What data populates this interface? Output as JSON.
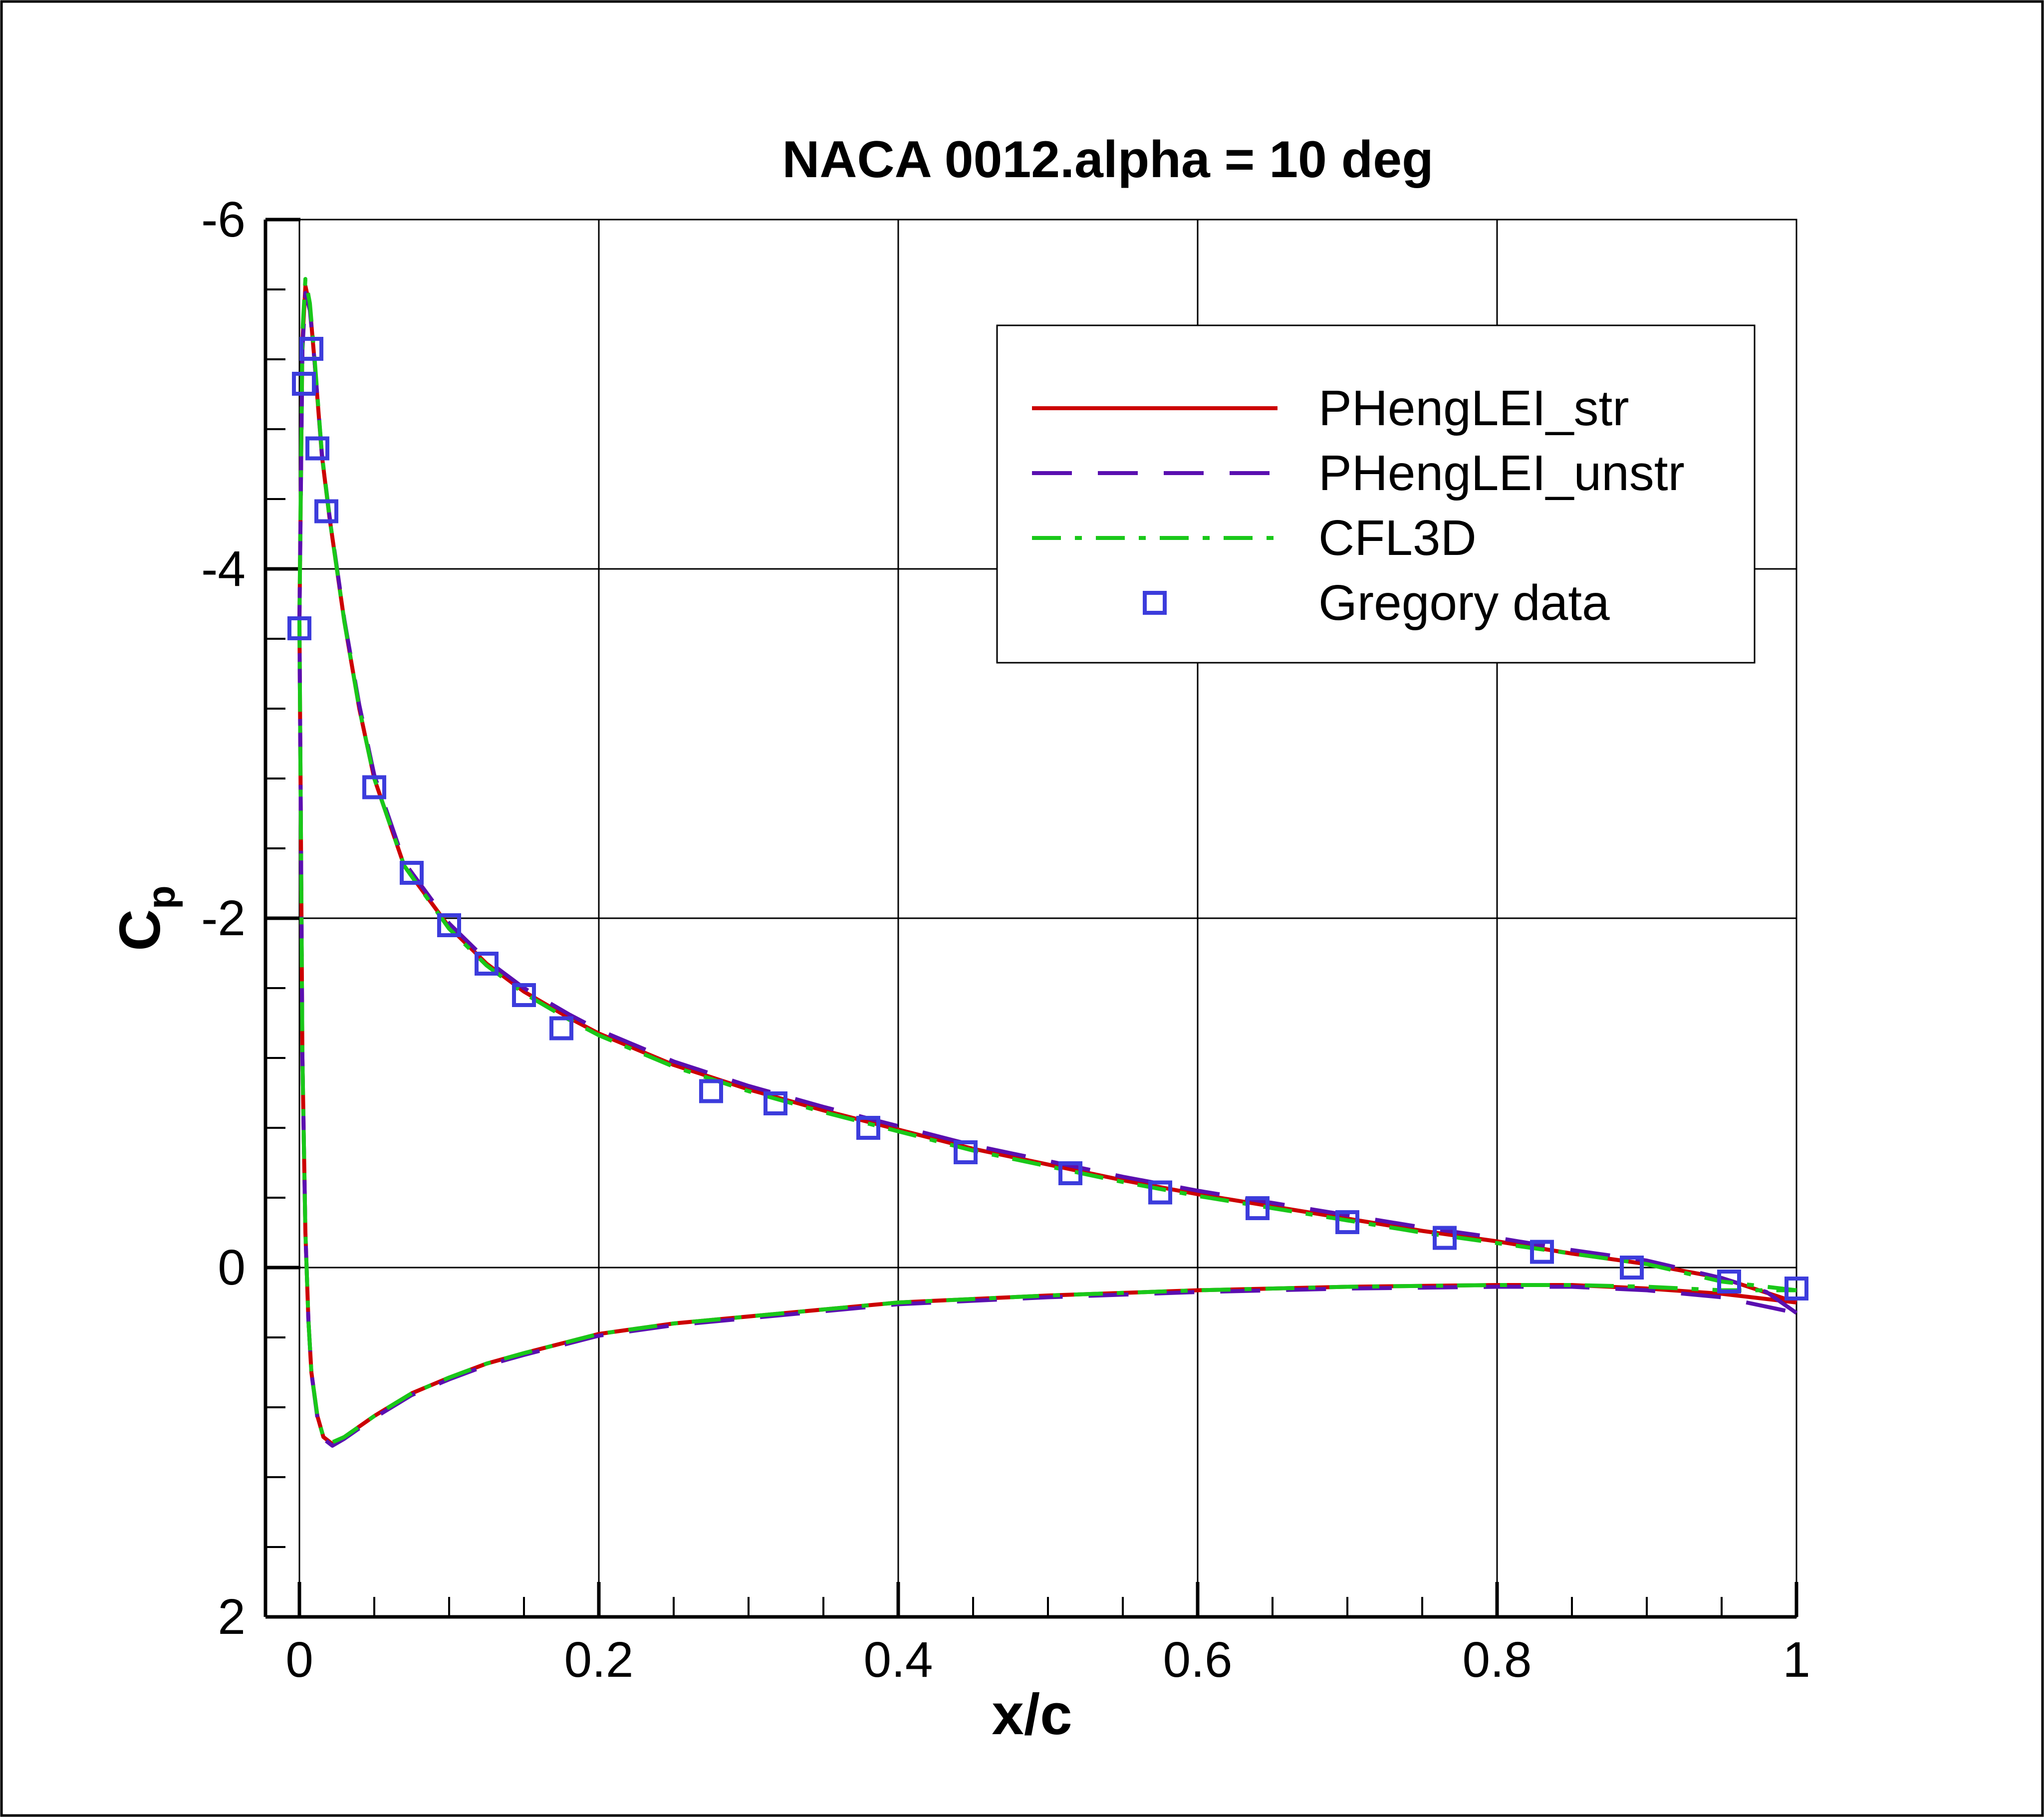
{
  "chart_data": {
    "type": "line",
    "title": "NACA 0012.alpha = 10 deg",
    "xlabel": "x/c",
    "ylabel_main": "C",
    "ylabel_sub": "p",
    "xlim": [
      0,
      1
    ],
    "ylim": [
      2,
      -6
    ],
    "y_inverted": true,
    "grid": true,
    "legend_position": "top-right",
    "x_ticks": [
      0,
      0.2,
      0.4,
      0.6,
      0.8,
      1
    ],
    "x_tick_labels": [
      "0",
      "0.2",
      "0.4",
      "0.6",
      "0.8",
      "1"
    ],
    "y_ticks": [
      -6,
      -4,
      -2,
      0,
      2
    ],
    "y_tick_labels": [
      "-6",
      "-4",
      "-2",
      "0",
      "2"
    ],
    "series": [
      {
        "name": "PHengLEI_str",
        "style": "solid",
        "color": "#cc0000",
        "upper": [
          [
            0,
            -3.7
          ],
          [
            0.002,
            -5.3
          ],
          [
            0.004,
            -5.62
          ],
          [
            0.007,
            -5.5
          ],
          [
            0.01,
            -5.2
          ],
          [
            0.015,
            -4.65
          ],
          [
            0.02,
            -4.3
          ],
          [
            0.03,
            -3.7
          ],
          [
            0.04,
            -3.2
          ],
          [
            0.05,
            -2.8
          ],
          [
            0.07,
            -2.3
          ],
          [
            0.1,
            -1.95
          ],
          [
            0.125,
            -1.74
          ],
          [
            0.15,
            -1.58
          ],
          [
            0.18,
            -1.43
          ],
          [
            0.2,
            -1.34
          ],
          [
            0.25,
            -1.16
          ],
          [
            0.3,
            -1.02
          ],
          [
            0.35,
            -0.9
          ],
          [
            0.4,
            -0.79
          ],
          [
            0.45,
            -0.68
          ],
          [
            0.5,
            -0.59
          ],
          [
            0.55,
            -0.5
          ],
          [
            0.6,
            -0.42
          ],
          [
            0.65,
            -0.35
          ],
          [
            0.7,
            -0.28
          ],
          [
            0.75,
            -0.21
          ],
          [
            0.8,
            -0.15
          ],
          [
            0.85,
            -0.08
          ],
          [
            0.9,
            -0.02
          ],
          [
            0.95,
            0.06
          ],
          [
            1,
            0.2
          ]
        ],
        "lower": [
          [
            0,
            -3.7
          ],
          [
            0.001,
            -2.5
          ],
          [
            0.002,
            -1.2
          ],
          [
            0.004,
            -0.2
          ],
          [
            0.006,
            0.3
          ],
          [
            0.008,
            0.6
          ],
          [
            0.012,
            0.85
          ],
          [
            0.016,
            0.97
          ],
          [
            0.022,
            1.01
          ],
          [
            0.03,
            0.97
          ],
          [
            0.05,
            0.85
          ],
          [
            0.075,
            0.72
          ],
          [
            0.1,
            0.63
          ],
          [
            0.125,
            0.55
          ],
          [
            0.15,
            0.49
          ],
          [
            0.2,
            0.38
          ],
          [
            0.25,
            0.32
          ],
          [
            0.3,
            0.28
          ],
          [
            0.4,
            0.2
          ],
          [
            0.5,
            0.16
          ],
          [
            0.6,
            0.13
          ],
          [
            0.7,
            0.11
          ],
          [
            0.8,
            0.1
          ],
          [
            0.85,
            0.1
          ],
          [
            0.9,
            0.12
          ],
          [
            0.95,
            0.15
          ],
          [
            1,
            0.2
          ]
        ]
      },
      {
        "name": "PHengLEI_unstr",
        "style": "dashed",
        "color": "#5a0fb0",
        "upper": [
          [
            0,
            -3.7
          ],
          [
            0.002,
            -5.25
          ],
          [
            0.004,
            -5.58
          ],
          [
            0.007,
            -5.48
          ],
          [
            0.01,
            -5.2
          ],
          [
            0.015,
            -4.66
          ],
          [
            0.02,
            -4.31
          ],
          [
            0.03,
            -3.71
          ],
          [
            0.04,
            -3.22
          ],
          [
            0.05,
            -2.82
          ],
          [
            0.07,
            -2.32
          ],
          [
            0.1,
            -1.97
          ],
          [
            0.125,
            -1.76
          ],
          [
            0.15,
            -1.6
          ],
          [
            0.18,
            -1.45
          ],
          [
            0.2,
            -1.36
          ],
          [
            0.25,
            -1.18
          ],
          [
            0.3,
            -1.04
          ],
          [
            0.35,
            -0.92
          ],
          [
            0.4,
            -0.81
          ],
          [
            0.45,
            -0.7
          ],
          [
            0.5,
            -0.61
          ],
          [
            0.55,
            -0.52
          ],
          [
            0.6,
            -0.44
          ],
          [
            0.65,
            -0.37
          ],
          [
            0.7,
            -0.3
          ],
          [
            0.75,
            -0.23
          ],
          [
            0.8,
            -0.17
          ],
          [
            0.85,
            -0.1
          ],
          [
            0.9,
            -0.04
          ],
          [
            0.95,
            0.06
          ],
          [
            0.98,
            0.14
          ],
          [
            1,
            0.26
          ]
        ],
        "lower": [
          [
            0,
            -3.7
          ],
          [
            0.001,
            -2.5
          ],
          [
            0.002,
            -1.2
          ],
          [
            0.004,
            -0.2
          ],
          [
            0.006,
            0.3
          ],
          [
            0.008,
            0.6
          ],
          [
            0.012,
            0.86
          ],
          [
            0.016,
            0.98
          ],
          [
            0.022,
            1.02
          ],
          [
            0.03,
            0.98
          ],
          [
            0.05,
            0.86
          ],
          [
            0.075,
            0.73
          ],
          [
            0.1,
            0.64
          ],
          [
            0.125,
            0.56
          ],
          [
            0.15,
            0.5
          ],
          [
            0.2,
            0.39
          ],
          [
            0.25,
            0.33
          ],
          [
            0.3,
            0.29
          ],
          [
            0.4,
            0.21
          ],
          [
            0.5,
            0.17
          ],
          [
            0.6,
            0.14
          ],
          [
            0.7,
            0.12
          ],
          [
            0.8,
            0.11
          ],
          [
            0.85,
            0.11
          ],
          [
            0.9,
            0.13
          ],
          [
            0.95,
            0.17
          ],
          [
            1,
            0.26
          ]
        ]
      },
      {
        "name": "CFL3D",
        "style": "dashdot",
        "color": "#19c819",
        "upper": [
          [
            0,
            -3.7
          ],
          [
            0.002,
            -5.35
          ],
          [
            0.004,
            -5.66
          ],
          [
            0.007,
            -5.52
          ],
          [
            0.01,
            -5.22
          ],
          [
            0.015,
            -4.66
          ],
          [
            0.02,
            -4.3
          ],
          [
            0.03,
            -3.7
          ],
          [
            0.04,
            -3.2
          ],
          [
            0.05,
            -2.8
          ],
          [
            0.07,
            -2.3
          ],
          [
            0.1,
            -1.94
          ],
          [
            0.125,
            -1.73
          ],
          [
            0.15,
            -1.57
          ],
          [
            0.18,
            -1.42
          ],
          [
            0.2,
            -1.33
          ],
          [
            0.25,
            -1.15
          ],
          [
            0.3,
            -1.01
          ],
          [
            0.35,
            -0.89
          ],
          [
            0.4,
            -0.78
          ],
          [
            0.45,
            -0.67
          ],
          [
            0.5,
            -0.58
          ],
          [
            0.55,
            -0.49
          ],
          [
            0.6,
            -0.41
          ],
          [
            0.65,
            -0.34
          ],
          [
            0.7,
            -0.27
          ],
          [
            0.75,
            -0.2
          ],
          [
            0.8,
            -0.14
          ],
          [
            0.85,
            -0.08
          ],
          [
            0.9,
            -0.02
          ],
          [
            0.95,
            0.08
          ],
          [
            1,
            0.13
          ]
        ],
        "lower": [
          [
            0,
            -3.7
          ],
          [
            0.001,
            -2.5
          ],
          [
            0.002,
            -1.2
          ],
          [
            0.004,
            -0.2
          ],
          [
            0.006,
            0.3
          ],
          [
            0.008,
            0.6
          ],
          [
            0.012,
            0.85
          ],
          [
            0.016,
            0.97
          ],
          [
            0.022,
            1.0
          ],
          [
            0.03,
            0.97
          ],
          [
            0.05,
            0.85
          ],
          [
            0.075,
            0.72
          ],
          [
            0.1,
            0.63
          ],
          [
            0.125,
            0.55
          ],
          [
            0.15,
            0.49
          ],
          [
            0.2,
            0.38
          ],
          [
            0.25,
            0.32
          ],
          [
            0.3,
            0.28
          ],
          [
            0.4,
            0.2
          ],
          [
            0.5,
            0.16
          ],
          [
            0.6,
            0.13
          ],
          [
            0.7,
            0.11
          ],
          [
            0.8,
            0.1
          ],
          [
            0.85,
            0.1
          ],
          [
            0.9,
            0.11
          ],
          [
            0.95,
            0.13
          ],
          [
            1,
            0.13
          ]
        ]
      },
      {
        "name": "Gregory data",
        "style": "markers",
        "marker": "square",
        "color": "#3c3cdc",
        "points": [
          [
            0,
            -3.66
          ],
          [
            0.003,
            -5.06
          ],
          [
            0.008,
            -5.26
          ],
          [
            0.012,
            -4.69
          ],
          [
            0.018,
            -4.33
          ],
          [
            0.05,
            -2.75
          ],
          [
            0.075,
            -2.26
          ],
          [
            0.1,
            -1.96
          ],
          [
            0.125,
            -1.74
          ],
          [
            0.15,
            -1.56
          ],
          [
            0.175,
            -1.37
          ],
          [
            0.275,
            -1.01
          ],
          [
            0.318,
            -0.94
          ],
          [
            0.38,
            -0.8
          ],
          [
            0.445,
            -0.66
          ],
          [
            0.515,
            -0.54
          ],
          [
            0.575,
            -0.43
          ],
          [
            0.64,
            -0.34
          ],
          [
            0.7,
            -0.26
          ],
          [
            0.765,
            -0.17
          ],
          [
            0.83,
            -0.09
          ],
          [
            0.89,
            0.0
          ],
          [
            0.955,
            0.08
          ],
          [
            1,
            0.12
          ]
        ]
      }
    ]
  }
}
